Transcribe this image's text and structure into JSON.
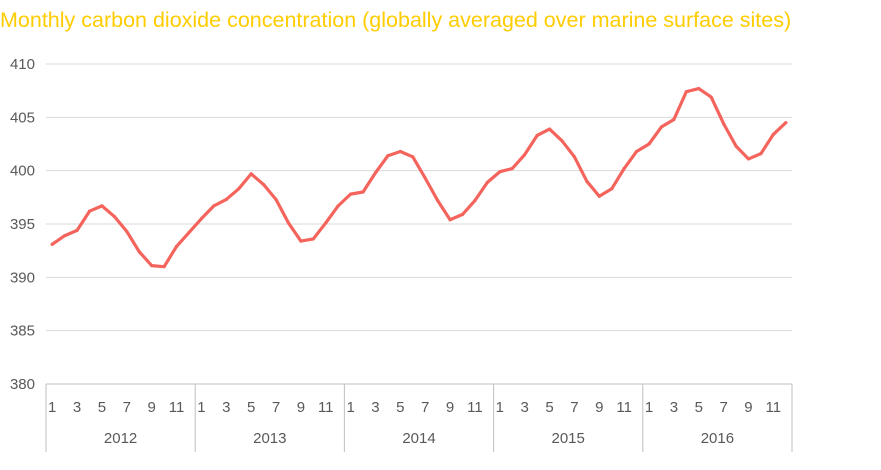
{
  "chart_data": {
    "type": "line",
    "title": "Monthly carbon dioxide concentration (globally averaged over marine surface sites)",
    "xlabel": "",
    "ylabel": "",
    "ylim": [
      380,
      410
    ],
    "yticks": [
      380,
      385,
      390,
      395,
      400,
      405,
      410
    ],
    "grid": true,
    "legend": "none",
    "years": [
      "2012",
      "2013",
      "2014",
      "2015",
      "2016"
    ],
    "month_labels": [
      "1",
      "3",
      "5",
      "7",
      "9",
      "11"
    ],
    "series": [
      {
        "values": [
          393.1,
          393.9,
          394.4,
          396.2,
          396.7,
          395.7,
          394.3,
          392.4,
          391.1,
          391.0,
          392.9,
          394.2,
          395.5,
          396.7,
          397.3,
          398.3,
          399.7,
          398.7,
          397.3,
          395.1,
          393.4,
          393.6,
          395.1,
          396.7,
          397.8,
          398.0,
          399.8,
          401.4,
          401.8,
          401.3,
          399.3,
          397.2,
          395.4,
          395.9,
          397.2,
          398.9,
          399.9,
          400.2,
          401.5,
          403.3,
          403.9,
          402.8,
          401.3,
          399.0,
          397.6,
          398.3,
          400.2,
          401.8,
          402.5,
          404.1,
          404.8,
          407.4,
          407.7,
          406.9,
          404.4,
          402.3,
          401.1,
          401.6,
          403.4,
          404.5
        ]
      }
    ],
    "colors": {
      "line": "#f4645c",
      "title": "#ffcc00",
      "grid": "#d9d9d9",
      "axis": "#bfbfbf",
      "text": "#595959"
    }
  }
}
